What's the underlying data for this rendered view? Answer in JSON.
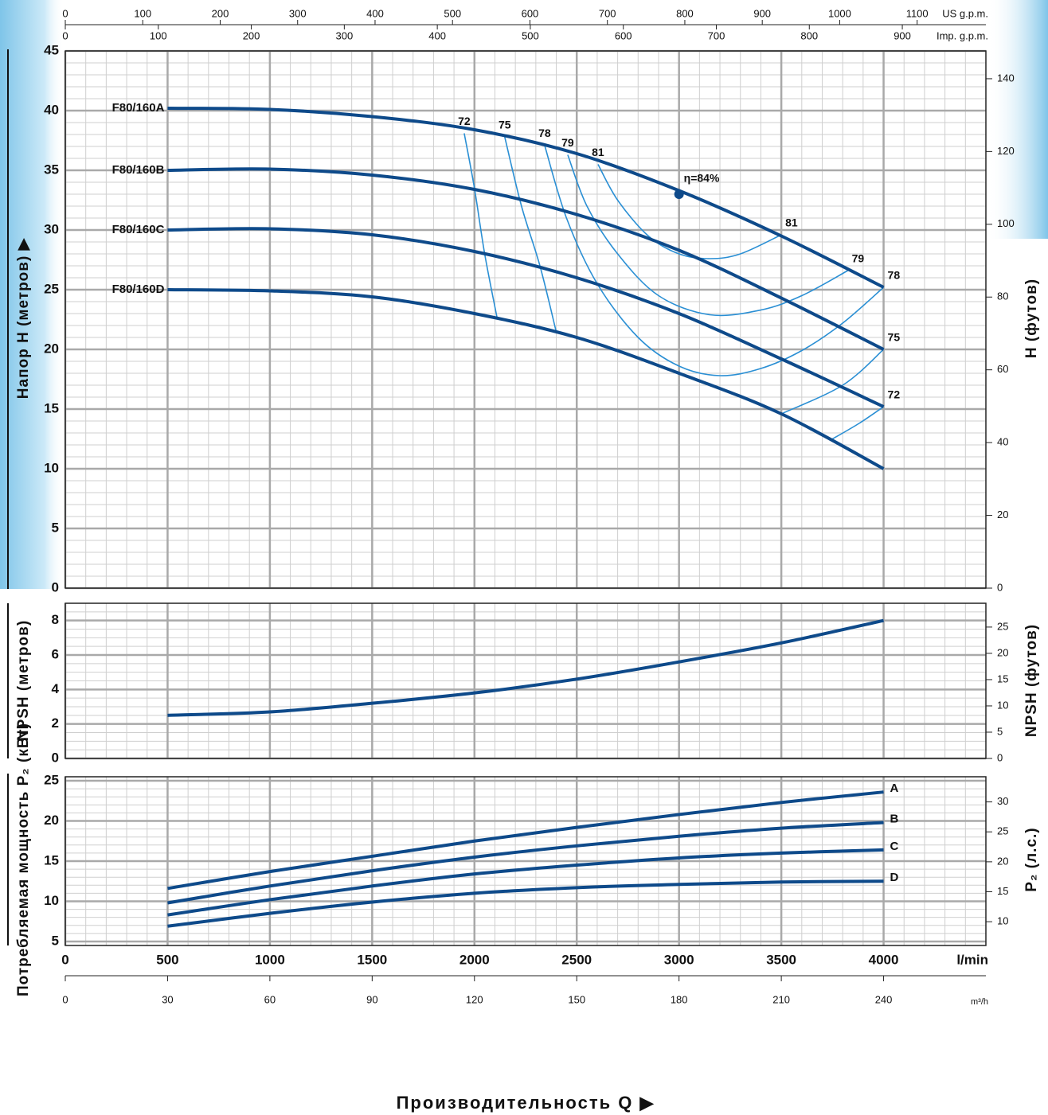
{
  "chart_data": [
    {
      "type": "line",
      "ylabel": "Напор  H  (метров)  ▶",
      "y2label": "H   (футов)",
      "top_axes": [
        {
          "label": "US g.p.m.",
          "lim": [
            0,
            1188.77
          ],
          "ticks": [
            0,
            100,
            200,
            300,
            400,
            500,
            600,
            700,
            800,
            900,
            1000,
            1100
          ]
        },
        {
          "label": "Imp. g.p.m.",
          "lim": [
            0,
            989.86
          ],
          "ticks": [
            0,
            100,
            200,
            300,
            400,
            500,
            600,
            700,
            800,
            900
          ]
        }
      ],
      "xlim": [
        0,
        4500
      ],
      "ylim": [
        0,
        45
      ],
      "yticks": [
        0,
        5,
        10,
        15,
        20,
        25,
        30,
        35,
        40,
        45
      ],
      "y2lim": [
        0,
        147.64
      ],
      "y2ticks": [
        0,
        20,
        40,
        60,
        80,
        100,
        120,
        140
      ],
      "x": [
        500,
        1000,
        1500,
        2000,
        2500,
        3000,
        3500,
        4000
      ],
      "series": [
        {
          "name": "F80/160A",
          "color": "#0e4a8a",
          "values": [
            40.2,
            40.1,
            39.5,
            38.4,
            36.4,
            33.3,
            29.5,
            25.2
          ]
        },
        {
          "name": "F80/160B",
          "color": "#0e4a8a",
          "values": [
            35,
            35.1,
            34.6,
            33.4,
            31.3,
            28.3,
            24.3,
            20
          ]
        },
        {
          "name": "F80/160C",
          "color": "#0e4a8a",
          "values": [
            30,
            30.1,
            29.6,
            28.2,
            26,
            23,
            19.2,
            15.2
          ]
        },
        {
          "name": "F80/160D",
          "color": "#0e4a8a",
          "values": [
            25,
            24.9,
            24.4,
            23,
            21,
            18,
            14.6,
            10
          ]
        }
      ],
      "efficiency": [
        {
          "name": "72",
          "color": "#2a8fd4",
          "x": [
            1950,
            2000,
            2050,
            2110,
            null,
            3740,
            3880,
            4000
          ],
          "values": [
            38.1,
            33.5,
            28,
            22.7,
            null,
            12.4,
            13.8,
            15.2
          ]
        },
        {
          "name": "75",
          "color": "#2a8fd4",
          "x": [
            2148,
            2230,
            2320,
            2398,
            null,
            3500,
            3800,
            4000
          ],
          "values": [
            37.8,
            32,
            27,
            21.6,
            null,
            14.6,
            17,
            20
          ]
        },
        {
          "name": "78",
          "color": "#2a8fd4",
          "x": [
            2343,
            2450,
            2600,
            2800,
            3000,
            3200,
            3400,
            3600,
            3800,
            4000
          ],
          "values": [
            37.1,
            31,
            25.5,
            21,
            18.6,
            17.8,
            18.4,
            19.9,
            22.2,
            25.2
          ]
        },
        {
          "name": "79",
          "color": "#2a8fd4",
          "x": [
            2456,
            2550,
            2700,
            2900,
            3150,
            3400,
            3600,
            3825
          ],
          "values": [
            36.3,
            32,
            28,
            24.5,
            22.9,
            23.3,
            24.5,
            26.6
          ]
        },
        {
          "name": "81",
          "color": "#2a8fd4",
          "x": [
            2604,
            2700,
            2850,
            3000,
            3150,
            3300,
            3500
          ],
          "values": [
            35.5,
            32.5,
            29.5,
            28,
            27.6,
            28,
            29.6
          ]
        }
      ],
      "best_point": {
        "x": 3000,
        "value": 33,
        "label": "η=84%",
        "color": "#0e4a8a"
      },
      "grid": true
    },
    {
      "type": "line",
      "ylabel": "NPSH    (метров)",
      "y2label": "NPSH    (футов)",
      "xlim": [
        0,
        4500
      ],
      "ylim": [
        0,
        9
      ],
      "yticks": [
        0,
        2,
        4,
        6,
        8
      ],
      "y2lim": [
        0,
        29.53
      ],
      "y2ticks": [
        0,
        5,
        10,
        15,
        20,
        25
      ],
      "x": [
        500,
        1000,
        1500,
        2000,
        2500,
        3000,
        3500,
        4000
      ],
      "series": [
        {
          "color": "#0e4a8a",
          "values": [
            2.5,
            2.7,
            3.2,
            3.8,
            4.6,
            5.6,
            6.7,
            8.0
          ]
        }
      ],
      "grid": true
    },
    {
      "type": "line",
      "ylabel": "Потребляемая мощность  P₂  (кВт)",
      "y2label": "P₂  (л.с.)",
      "xlim": [
        0,
        4500
      ],
      "ylim": [
        4.5,
        25.5
      ],
      "yticks": [
        5,
        10,
        15,
        20,
        25
      ],
      "y2lim": [
        6.03,
        34.2
      ],
      "y2ticks": [
        10,
        15,
        20,
        25,
        30
      ],
      "x": [
        500,
        1000,
        1500,
        2000,
        2500,
        3000,
        3500,
        4000
      ],
      "series": [
        {
          "name": "A",
          "color": "#0e4a8a",
          "values": [
            11.6,
            13.7,
            15.6,
            17.5,
            19.2,
            20.8,
            22.3,
            23.6
          ]
        },
        {
          "name": "B",
          "color": "#0e4a8a",
          "values": [
            9.8,
            11.9,
            13.8,
            15.5,
            16.9,
            18.1,
            19.1,
            19.8
          ]
        },
        {
          "name": "C",
          "color": "#0e4a8a",
          "values": [
            8.3,
            10.2,
            11.9,
            13.4,
            14.5,
            15.4,
            16.0,
            16.4
          ]
        },
        {
          "name": "D",
          "color": "#0e4a8a",
          "values": [
            6.9,
            8.5,
            9.9,
            11.0,
            11.7,
            12.1,
            12.4,
            12.5
          ]
        }
      ],
      "xticks": [
        0,
        500,
        1000,
        1500,
        2000,
        2500,
        3000,
        3500,
        4000
      ],
      "xlabel": "l/min",
      "x2_axis": {
        "label": "m³/h",
        "lim": [
          0,
          270
        ],
        "ticks": [
          0,
          30,
          60,
          90,
          120,
          150,
          180,
          210,
          240
        ]
      },
      "title": "Производительность   Q  ▶",
      "grid": true
    }
  ]
}
